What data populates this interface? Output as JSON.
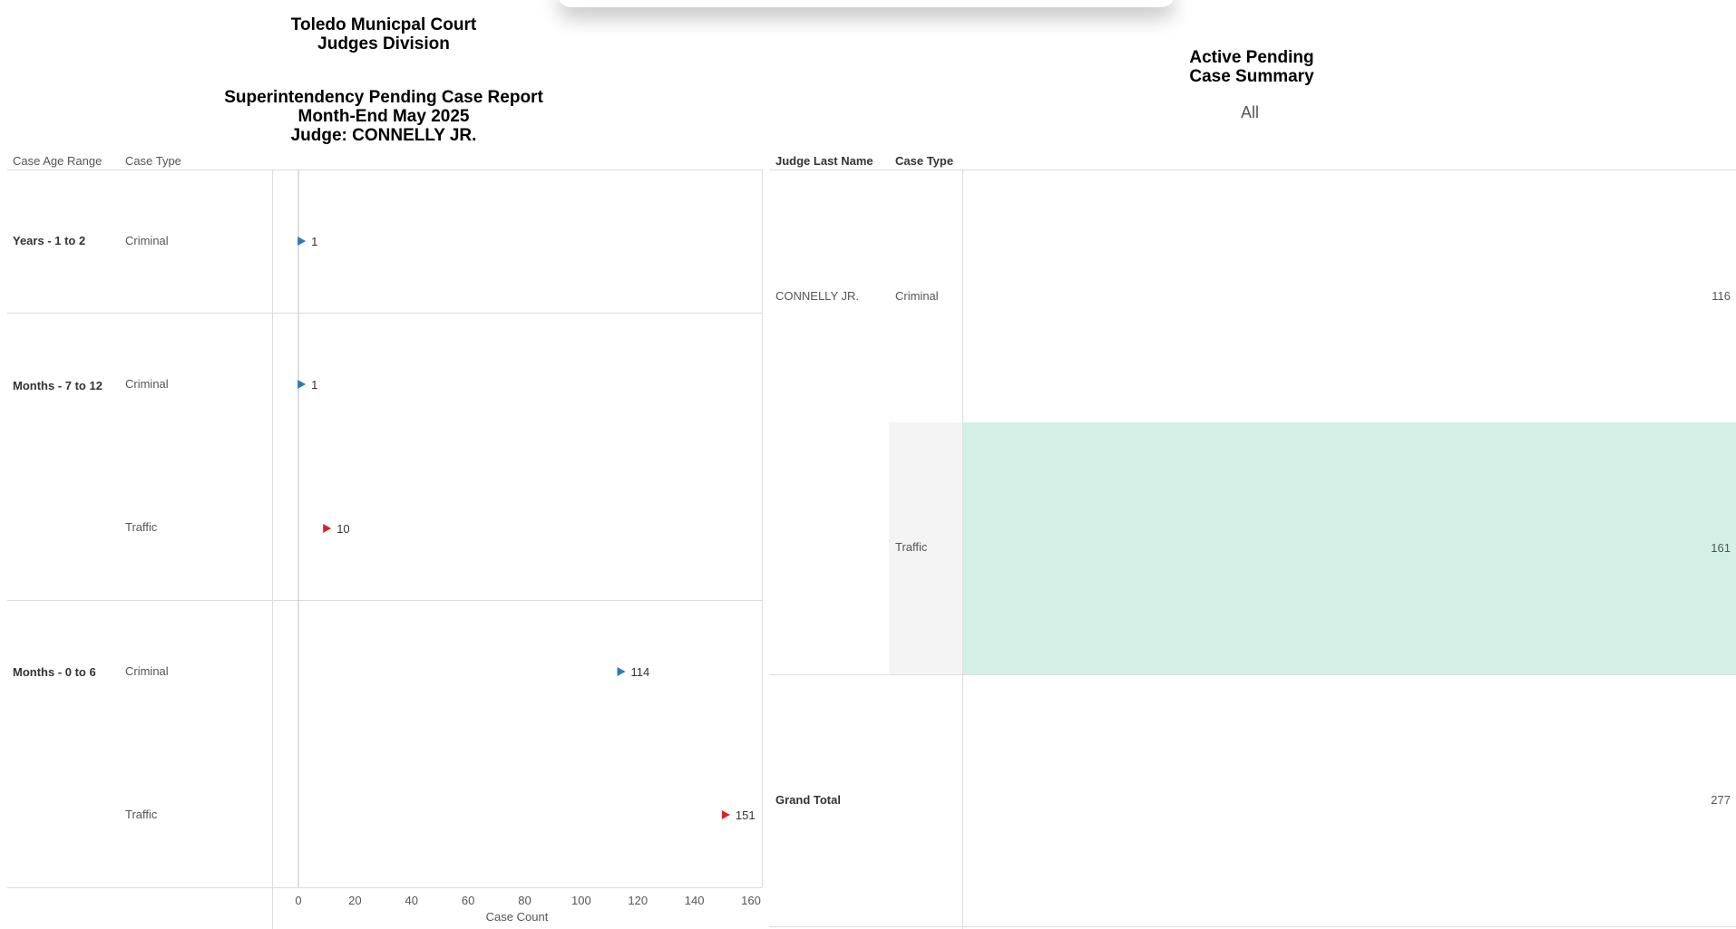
{
  "left_title": {
    "line1": "Toledo Municpal Court",
    "line2": "Judges Division",
    "line3": "Superintendency Pending Case Report",
    "line4": "Month-End May 2025",
    "line5": "Judge: CONNELLY JR."
  },
  "left_headers": {
    "age": "Case Age Range",
    "type": "Case Type"
  },
  "right_title": {
    "line1": "Active Pending",
    "line2": "Case Summary",
    "filter": "All"
  },
  "right_headers": {
    "judge": "Judge Last Name",
    "type": "Case Type"
  },
  "colors": {
    "criminal": "#2e78b8",
    "traffic": "#d62728",
    "highlight": "#d3f0e6",
    "highlight_label": "#f4f4f4"
  },
  "chart_data": [
    {
      "type": "scatter",
      "xlabel": "Case Count",
      "xlim": [
        0,
        160
      ],
      "xticks": [
        0,
        20,
        40,
        60,
        80,
        100,
        120,
        140,
        160
      ],
      "groups": [
        "Years - 1 to 2",
        "Months - 7 to 12",
        "Months - 0 to 6"
      ],
      "rows": [
        {
          "group": "Years - 1 to 2",
          "case_type": "Criminal",
          "value": 1,
          "label": "1"
        },
        {
          "group": "Months - 7 to 12",
          "case_type": "Criminal",
          "value": 1,
          "label": "1"
        },
        {
          "group": "Months - 7 to 12",
          "case_type": "Traffic",
          "value": 10,
          "label": "10"
        },
        {
          "group": "Months - 0 to 6",
          "case_type": "Criminal",
          "value": 114,
          "label": "114"
        },
        {
          "group": "Months - 0 to 6",
          "case_type": "Traffic",
          "value": 151,
          "label": "151"
        }
      ]
    },
    {
      "type": "table",
      "columns": [
        "Judge Last Name",
        "Case Type"
      ],
      "judge": "CONNELLY JR.",
      "rows": [
        {
          "case_type": "Criminal",
          "value": "116",
          "highlighted": false
        },
        {
          "case_type": "Traffic",
          "value": "161",
          "highlighted": true
        }
      ],
      "grand_total_label": "Grand Total",
      "grand_total": "277"
    }
  ]
}
